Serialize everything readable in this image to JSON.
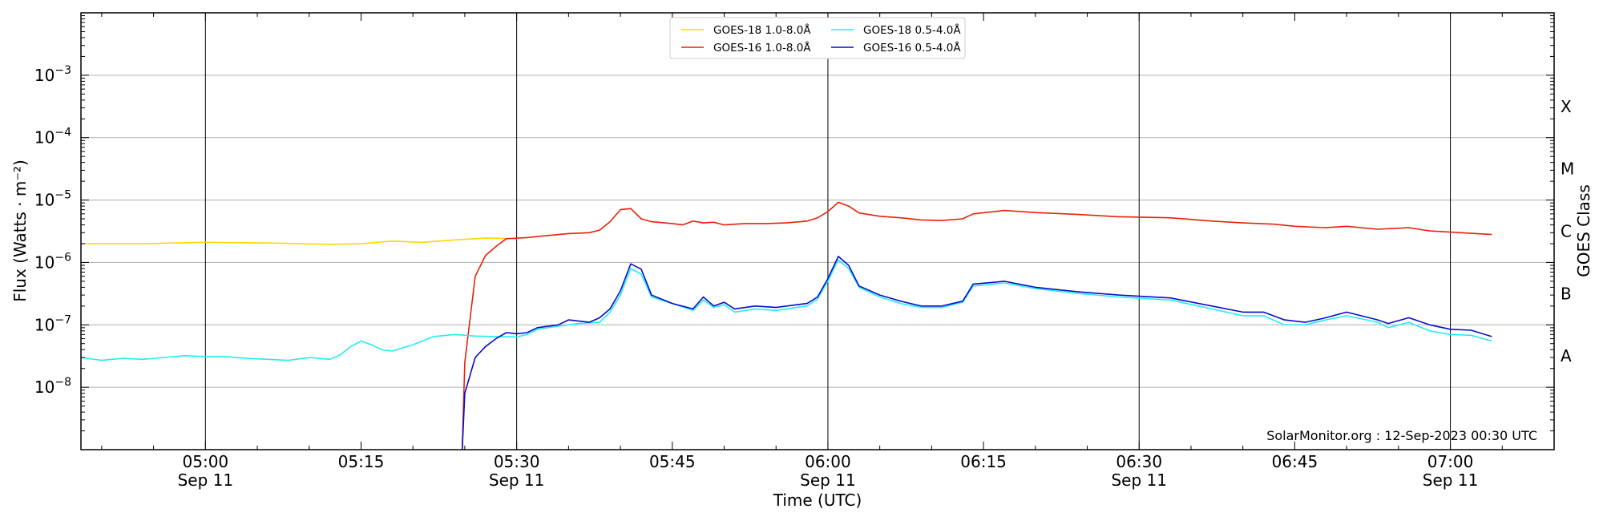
{
  "chart_data": {
    "type": "line",
    "xlabel": "Time (UTC)",
    "ylabel": "Flux (Watts · m⁻²)",
    "ylabel_right": "GOES Class",
    "yscale": "log",
    "ylim": [
      1e-09,
      0.01
    ],
    "xlim": [
      "04:48",
      "07:10"
    ],
    "grid": "horizontal lines at each decade; vertical lines at half-hour marks",
    "legend_position": "top-center",
    "credit": "SolarMonitor.org : 12-Sep-2023 00:30 UTC",
    "x_ticks": [
      {
        "time": "05:00",
        "label": "05:00",
        "date": "Sep 11"
      },
      {
        "time": "05:15",
        "label": "05:15",
        "date": ""
      },
      {
        "time": "05:30",
        "label": "05:30",
        "date": "Sep 11"
      },
      {
        "time": "05:45",
        "label": "05:45",
        "date": ""
      },
      {
        "time": "06:00",
        "label": "06:00",
        "date": "Sep 11"
      },
      {
        "time": "06:15",
        "label": "06:15",
        "date": ""
      },
      {
        "time": "06:30",
        "label": "06:30",
        "date": "Sep 11"
      },
      {
        "time": "06:45",
        "label": "06:45",
        "date": ""
      },
      {
        "time": "07:00",
        "label": "07:00",
        "date": "Sep 11"
      }
    ],
    "y_ticks": [
      {
        "value": 1e-08,
        "base": "10",
        "exp": "−8"
      },
      {
        "value": 1e-07,
        "base": "10",
        "exp": "−7"
      },
      {
        "value": 1e-06,
        "base": "10",
        "exp": "−6"
      },
      {
        "value": 1e-05,
        "base": "10",
        "exp": "−5"
      },
      {
        "value": 0.0001,
        "base": "10",
        "exp": "−4"
      },
      {
        "value": 0.001,
        "base": "10",
        "exp": "−3"
      }
    ],
    "goes_classes": [
      {
        "label": "A",
        "value": 3.16e-08
      },
      {
        "label": "B",
        "value": 3.16e-07
      },
      {
        "label": "C",
        "value": 3.16e-06
      },
      {
        "label": "M",
        "value": 3.16e-05
      },
      {
        "label": "X",
        "value": 0.000316
      }
    ],
    "series": [
      {
        "name": "GOES-18 1.0-8.0Å",
        "color": "#FFD700",
        "points": [
          [
            "04:48",
            2e-06
          ],
          [
            "04:54",
            2e-06
          ],
          [
            "05:00",
            2.1e-06
          ],
          [
            "05:06",
            2.05e-06
          ],
          [
            "05:12",
            1.95e-06
          ],
          [
            "05:15",
            2e-06
          ],
          [
            "05:18",
            2.2e-06
          ],
          [
            "05:21",
            2.1e-06
          ],
          [
            "05:24",
            2.3e-06
          ],
          [
            "05:27",
            2.45e-06
          ],
          [
            "05:30",
            2.4e-06
          ]
        ]
      },
      {
        "name": "GOES-16 1.0-8.0Å",
        "color": "#E8210A",
        "points": [
          [
            "05:24:45",
            1e-09
          ],
          [
            "05:25",
            2.5e-08
          ],
          [
            "05:26",
            6e-07
          ],
          [
            "05:27",
            1.3e-06
          ],
          [
            "05:28",
            1.8e-06
          ],
          [
            "05:29",
            2.4e-06
          ],
          [
            "05:31",
            2.5e-06
          ],
          [
            "05:33",
            2.7e-06
          ],
          [
            "05:35",
            2.9e-06
          ],
          [
            "05:37",
            3e-06
          ],
          [
            "05:38",
            3.3e-06
          ],
          [
            "05:39",
            4.5e-06
          ],
          [
            "05:40",
            7e-06
          ],
          [
            "05:41",
            7.3e-06
          ],
          [
            "05:42",
            5e-06
          ],
          [
            "05:43",
            4.5e-06
          ],
          [
            "05:45",
            4.2e-06
          ],
          [
            "05:46",
            4e-06
          ],
          [
            "05:47",
            4.6e-06
          ],
          [
            "05:48",
            4.3e-06
          ],
          [
            "05:49",
            4.4e-06
          ],
          [
            "05:50",
            4e-06
          ],
          [
            "05:52",
            4.2e-06
          ],
          [
            "05:54",
            4.2e-06
          ],
          [
            "05:56",
            4.3e-06
          ],
          [
            "05:58",
            4.6e-06
          ],
          [
            "05:59",
            5.2e-06
          ],
          [
            "06:00",
            6.5e-06
          ],
          [
            "06:01",
            9.2e-06
          ],
          [
            "06:02",
            8e-06
          ],
          [
            "06:03",
            6.2e-06
          ],
          [
            "06:05",
            5.5e-06
          ],
          [
            "06:07",
            5.2e-06
          ],
          [
            "06:09",
            4.8e-06
          ],
          [
            "06:11",
            4.7e-06
          ],
          [
            "06:13",
            5e-06
          ],
          [
            "06:14",
            6e-06
          ],
          [
            "06:16",
            6.5e-06
          ],
          [
            "06:17",
            6.8e-06
          ],
          [
            "06:20",
            6.3e-06
          ],
          [
            "06:24",
            5.9e-06
          ],
          [
            "06:28",
            5.4e-06
          ],
          [
            "06:33",
            5.2e-06
          ],
          [
            "06:37",
            4.6e-06
          ],
          [
            "06:40",
            4.3e-06
          ],
          [
            "06:43",
            4.1e-06
          ],
          [
            "06:45",
            3.8e-06
          ],
          [
            "06:48",
            3.6e-06
          ],
          [
            "06:50",
            3.8e-06
          ],
          [
            "06:53",
            3.4e-06
          ],
          [
            "06:56",
            3.6e-06
          ],
          [
            "06:58",
            3.2e-06
          ],
          [
            "07:01",
            3e-06
          ],
          [
            "07:04",
            2.8e-06
          ]
        ]
      },
      {
        "name": "GOES-18 0.5-4.0Å",
        "color": "#22EEF0",
        "points": [
          [
            "04:48",
            3e-08
          ],
          [
            "04:50",
            2.7e-08
          ],
          [
            "04:52",
            2.9e-08
          ],
          [
            "04:54",
            2.8e-08
          ],
          [
            "04:56",
            3e-08
          ],
          [
            "04:58",
            3.2e-08
          ],
          [
            "05:00",
            3.1e-08
          ],
          [
            "05:02",
            3.1e-08
          ],
          [
            "05:04",
            2.9e-08
          ],
          [
            "05:06",
            2.8e-08
          ],
          [
            "05:08",
            2.7e-08
          ],
          [
            "05:10",
            3e-08
          ],
          [
            "05:12",
            2.8e-08
          ],
          [
            "05:13",
            3.3e-08
          ],
          [
            "05:14",
            4.5e-08
          ],
          [
            "05:15",
            5.5e-08
          ],
          [
            "05:16",
            4.8e-08
          ],
          [
            "05:17",
            4e-08
          ],
          [
            "05:18",
            3.8e-08
          ],
          [
            "05:20",
            4.8e-08
          ],
          [
            "05:22",
            6.5e-08
          ],
          [
            "05:24",
            7e-08
          ],
          [
            "05:26",
            6.6e-08
          ],
          [
            "05:28",
            6.5e-08
          ],
          [
            "05:30",
            6.4e-08
          ],
          [
            "05:31",
            7e-08
          ],
          [
            "05:32",
            8.5e-08
          ],
          [
            "05:34",
            9.5e-08
          ],
          [
            "05:36",
            1.05e-07
          ],
          [
            "05:38",
            1.1e-07
          ],
          [
            "05:39",
            1.6e-07
          ],
          [
            "05:40",
            3e-07
          ],
          [
            "05:41",
            8e-07
          ],
          [
            "05:42",
            6.5e-07
          ],
          [
            "05:43",
            2.8e-07
          ],
          [
            "05:45",
            2.2e-07
          ],
          [
            "05:47",
            1.7e-07
          ],
          [
            "05:48",
            2.5e-07
          ],
          [
            "05:49",
            1.9e-07
          ],
          [
            "05:50",
            2.1e-07
          ],
          [
            "05:51",
            1.6e-07
          ],
          [
            "05:53",
            1.8e-07
          ],
          [
            "05:55",
            1.7e-07
          ],
          [
            "05:57",
            1.9e-07
          ],
          [
            "05:58",
            2e-07
          ],
          [
            "05:59",
            2.6e-07
          ],
          [
            "06:00",
            5e-07
          ],
          [
            "06:01",
            1.1e-06
          ],
          [
            "06:02",
            8e-07
          ],
          [
            "06:03",
            4e-07
          ],
          [
            "06:05",
            2.8e-07
          ],
          [
            "06:07",
            2.2e-07
          ],
          [
            "06:09",
            1.9e-07
          ],
          [
            "06:11",
            1.9e-07
          ],
          [
            "06:13",
            2.3e-07
          ],
          [
            "06:14",
            4.2e-07
          ],
          [
            "06:16",
            4.5e-07
          ],
          [
            "06:17",
            4.7e-07
          ],
          [
            "06:20",
            3.8e-07
          ],
          [
            "06:24",
            3.2e-07
          ],
          [
            "06:28",
            2.8e-07
          ],
          [
            "06:33",
            2.5e-07
          ],
          [
            "06:37",
            1.8e-07
          ],
          [
            "06:40",
            1.4e-07
          ],
          [
            "06:42",
            1.4e-07
          ],
          [
            "06:44",
            1e-07
          ],
          [
            "06:46",
            1e-07
          ],
          [
            "06:48",
            1.2e-07
          ],
          [
            "06:50",
            1.4e-07
          ],
          [
            "06:53",
            1.1e-07
          ],
          [
            "06:54",
            9e-08
          ],
          [
            "06:56",
            1.1e-07
          ],
          [
            "06:58",
            8e-08
          ],
          [
            "07:00",
            7e-08
          ],
          [
            "07:02",
            6.8e-08
          ],
          [
            "07:04",
            5.5e-08
          ]
        ]
      },
      {
        "name": "GOES-16 0.5-4.0Å",
        "color": "#0A0ACC",
        "points": [
          [
            "05:24:45",
            1e-09
          ],
          [
            "05:25",
            8e-09
          ],
          [
            "05:26",
            3e-08
          ],
          [
            "05:27",
            4.5e-08
          ],
          [
            "05:28",
            6e-08
          ],
          [
            "05:29",
            7.5e-08
          ],
          [
            "05:30",
            7.2e-08
          ],
          [
            "05:31",
            7.5e-08
          ],
          [
            "05:32",
            9e-08
          ],
          [
            "05:34",
            1e-07
          ],
          [
            "05:35",
            1.2e-07
          ],
          [
            "05:36",
            1.15e-07
          ],
          [
            "05:37",
            1.1e-07
          ],
          [
            "05:38",
            1.3e-07
          ],
          [
            "05:39",
            1.8e-07
          ],
          [
            "05:40",
            3.5e-07
          ],
          [
            "05:41",
            9.5e-07
          ],
          [
            "05:42",
            7.8e-07
          ],
          [
            "05:43",
            3e-07
          ],
          [
            "05:45",
            2.2e-07
          ],
          [
            "05:47",
            1.8e-07
          ],
          [
            "05:48",
            2.8e-07
          ],
          [
            "05:49",
            2e-07
          ],
          [
            "05:50",
            2.3e-07
          ],
          [
            "05:51",
            1.8e-07
          ],
          [
            "05:53",
            2e-07
          ],
          [
            "05:55",
            1.9e-07
          ],
          [
            "05:57",
            2.1e-07
          ],
          [
            "05:58",
            2.2e-07
          ],
          [
            "05:59",
            2.8e-07
          ],
          [
            "06:00",
            5.5e-07
          ],
          [
            "06:01",
            1.25e-06
          ],
          [
            "06:02",
            9e-07
          ],
          [
            "06:03",
            4.2e-07
          ],
          [
            "06:05",
            3e-07
          ],
          [
            "06:07",
            2.4e-07
          ],
          [
            "06:09",
            2e-07
          ],
          [
            "06:11",
            2e-07
          ],
          [
            "06:13",
            2.4e-07
          ],
          [
            "06:14",
            4.5e-07
          ],
          [
            "06:16",
            4.8e-07
          ],
          [
            "06:17",
            5e-07
          ],
          [
            "06:20",
            4e-07
          ],
          [
            "06:24",
            3.4e-07
          ],
          [
            "06:28",
            3e-07
          ],
          [
            "06:33",
            2.7e-07
          ],
          [
            "06:37",
            2e-07
          ],
          [
            "06:40",
            1.6e-07
          ],
          [
            "06:42",
            1.6e-07
          ],
          [
            "06:44",
            1.2e-07
          ],
          [
            "06:46",
            1.1e-07
          ],
          [
            "06:48",
            1.3e-07
          ],
          [
            "06:50",
            1.6e-07
          ],
          [
            "06:53",
            1.2e-07
          ],
          [
            "06:54",
            1.05e-07
          ],
          [
            "06:56",
            1.3e-07
          ],
          [
            "06:58",
            1e-07
          ],
          [
            "07:00",
            8.5e-08
          ],
          [
            "07:02",
            8.2e-08
          ],
          [
            "07:04",
            6.5e-08
          ]
        ]
      }
    ]
  }
}
